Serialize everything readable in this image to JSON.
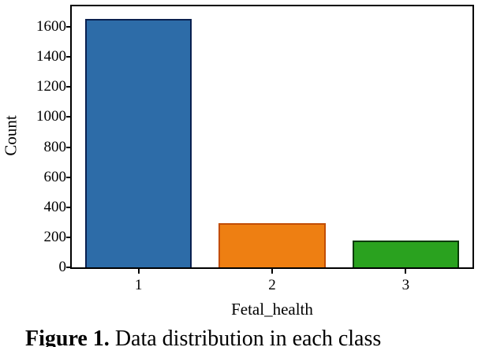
{
  "chart_data": {
    "type": "bar",
    "title": "",
    "categories": [
      "1",
      "2",
      "3"
    ],
    "values": [
      1655,
      295,
      176
    ],
    "xlabel": "Fetal_health",
    "ylabel": "Count",
    "yticks": [
      0,
      200,
      400,
      600,
      800,
      1000,
      1200,
      1400,
      1600
    ],
    "ylim": [
      0,
      1737
    ],
    "grid": false,
    "legend": "none",
    "bar_fill_colors": [
      "#2d6ca8",
      "#ee7f12",
      "#2aa21f"
    ],
    "bar_edge_colors": [
      "#0a2050",
      "#c24d05",
      "#073a06"
    ],
    "axis_color": "#000000"
  },
  "caption": {
    "label": "Figure 1.",
    "text": " Data distribution in each class"
  }
}
